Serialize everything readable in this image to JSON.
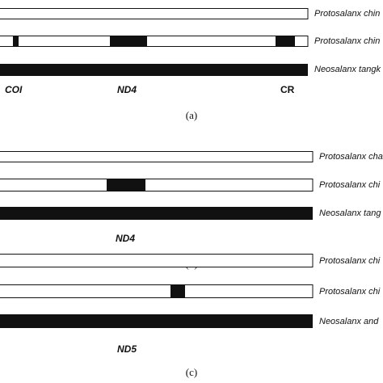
{
  "panels": [
    {
      "caption": "(a)",
      "rows": [
        "Protosalanx chin",
        "Protosalanx chin",
        "Neosalanx tangk"
      ],
      "genes": [
        "COI",
        "ND4",
        "CR"
      ]
    },
    {
      "caption": "(b)",
      "rows": [
        "Protosalanx cha",
        "Protosalanx chi",
        "Neosalanx tang"
      ],
      "genes": [
        "ND4"
      ]
    },
    {
      "caption": "(c)",
      "rows": [
        "Protosalanx chi",
        "Protosalanx chi",
        "Neosalanx and"
      ],
      "genes": [
        "ND5"
      ]
    }
  ]
}
